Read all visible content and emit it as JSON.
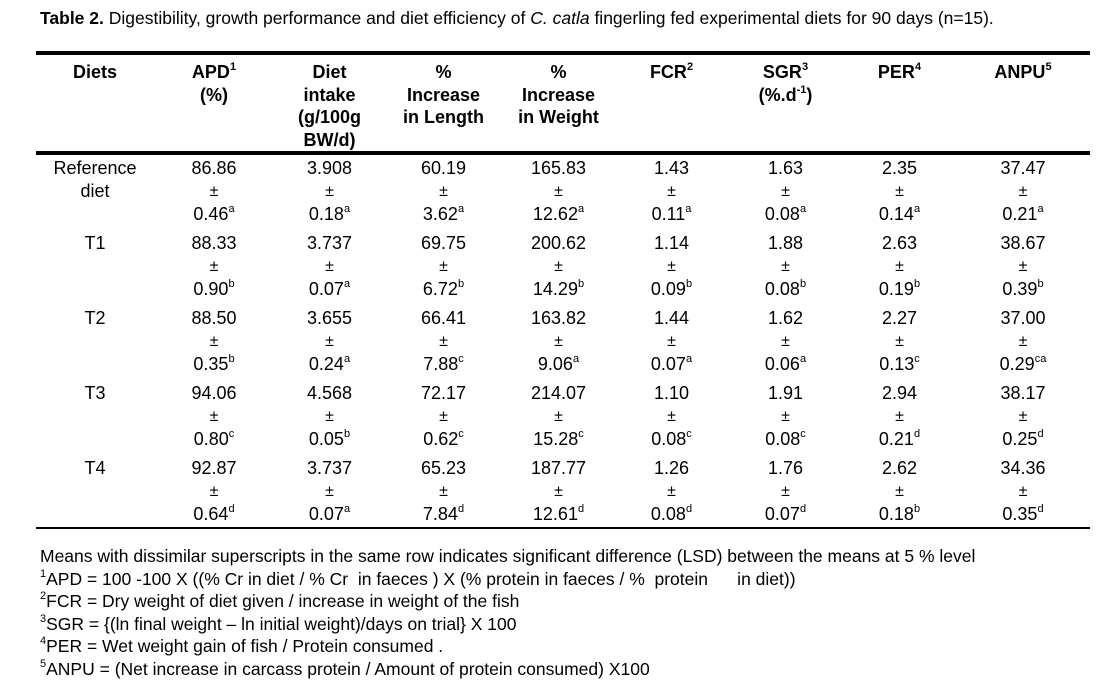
{
  "caption": {
    "label": "Table 2.",
    "text_before": " Digestibility, growth performance and diet efficiency of ",
    "species": "C. catla",
    "text_after": " fingerling fed experimental diets for 90 days (n=15)."
  },
  "headers": [
    {
      "main": "Diets",
      "sup": ""
    },
    {
      "main": "APD",
      "sup": "1",
      "sub": "(%)"
    },
    {
      "main": "Diet intake (g/100g BW/d)",
      "sup": ""
    },
    {
      "main": "% Increase in Length",
      "sup": ""
    },
    {
      "main": "% Increase in Weight",
      "sup": ""
    },
    {
      "main": "FCR",
      "sup": "2"
    },
    {
      "main": "SGR",
      "sup": "3",
      "sub_pre": "(%.d",
      "sub_sup": "-1",
      "sub_post": ")"
    },
    {
      "main": "PER",
      "sup": "4"
    },
    {
      "main": "ANPU",
      "sup": "5"
    }
  ],
  "rows": [
    {
      "diet": "Reference diet",
      "cells": [
        {
          "mean": "86.86",
          "pm": "±",
          "sd": "0.46",
          "sig": "a"
        },
        {
          "mean": "3.908",
          "pm": "±",
          "sd": "0.18",
          "sig": "a"
        },
        {
          "mean": "60.19",
          "pm": "±",
          "sd": "3.62",
          "sig": "a"
        },
        {
          "mean": "165.83",
          "pm": "±",
          "sd": "12.62",
          "sig": "a"
        },
        {
          "mean": "1.43",
          "pm": "±",
          "sd": "0.11",
          "sig": "a"
        },
        {
          "mean": "1.63",
          "pm": "±",
          "sd": "0.08",
          "sig": "a"
        },
        {
          "mean": "2.35",
          "pm": "±",
          "sd": "0.14",
          "sig": "a"
        },
        {
          "mean": "37.47",
          "pm": "±",
          "sd": "0.21",
          "sig": "a"
        }
      ]
    },
    {
      "diet": "T1",
      "cells": [
        {
          "mean": "88.33",
          "pm": "±",
          "sd": "0.90",
          "sig": "b"
        },
        {
          "mean": "3.737",
          "pm": "±",
          "sd": "0.07",
          "sig": "a"
        },
        {
          "mean": "69.75",
          "pm": "±",
          "sd": "6.72",
          "sig": "b"
        },
        {
          "mean": "200.62",
          "pm": "±",
          "sd": "14.29",
          "sig": "b"
        },
        {
          "mean": "1.14",
          "pm": "±",
          "sd": "0.09",
          "sig": "b"
        },
        {
          "mean": "1.88",
          "pm": "±",
          "sd": "0.08",
          "sig": "b"
        },
        {
          "mean": "2.63",
          "pm": "±",
          "sd": "0.19",
          "sig": "b"
        },
        {
          "mean": "38.67",
          "pm": "±",
          "sd": "0.39",
          "sig": "b"
        }
      ]
    },
    {
      "diet": "T2",
      "cells": [
        {
          "mean": "88.50",
          "pm": "±",
          "sd": "0.35",
          "sig": "b"
        },
        {
          "mean": "3.655",
          "pm": "±",
          "sd": "0.24",
          "sig": "a"
        },
        {
          "mean": "66.41",
          "pm": "±",
          "sd": "7.88",
          "sig": "c"
        },
        {
          "mean": "163.82",
          "pm": "±",
          "sd": "9.06",
          "sig": "a"
        },
        {
          "mean": "1.44",
          "pm": "±",
          "sd": "0.07",
          "sig": "a"
        },
        {
          "mean": "1.62",
          "pm": "±",
          "sd": "0.06",
          "sig": "a"
        },
        {
          "mean": "2.27",
          "pm": "±",
          "sd": "0.13",
          "sig": "c"
        },
        {
          "mean": "37.00",
          "pm": "±",
          "sd": "0.29",
          "sig": "ca"
        }
      ]
    },
    {
      "diet": "T3",
      "cells": [
        {
          "mean": "94.06",
          "pm": "±",
          "sd": "0.80",
          "sig": "c"
        },
        {
          "mean": "4.568",
          "pm": "±",
          "sd": "0.05",
          "sig": "b"
        },
        {
          "mean": "72.17",
          "pm": "±",
          "sd": "0.62",
          "sig": "c"
        },
        {
          "mean": "214.07",
          "pm": "±",
          "sd": "15.28",
          "sig": "c"
        },
        {
          "mean": "1.10",
          "pm": "±",
          "sd": "0.08",
          "sig": "c"
        },
        {
          "mean": "1.91",
          "pm": "±",
          "sd": "0.08",
          "sig": "c"
        },
        {
          "mean": "2.94",
          "pm": "±",
          "sd": "0.21",
          "sig": "d"
        },
        {
          "mean": "38.17",
          "pm": "±",
          "sd": "0.25",
          "sig": "d"
        }
      ]
    },
    {
      "diet": "T4",
      "cells": [
        {
          "mean": "92.87",
          "pm": "±",
          "sd": "0.64",
          "sig": "d"
        },
        {
          "mean": "3.737",
          "pm": "±",
          "sd": "0.07",
          "sig": "a"
        },
        {
          "mean": "65.23",
          "pm": "±",
          "sd": "7.84",
          "sig": "d"
        },
        {
          "mean": "187.77",
          "pm": "±",
          "sd": "12.61",
          "sig": "d"
        },
        {
          "mean": "1.26",
          "pm": "±",
          "sd": "0.08",
          "sig": "d"
        },
        {
          "mean": "1.76",
          "pm": "±",
          "sd": "0.07",
          "sig": "d"
        },
        {
          "mean": "2.62",
          "pm": "±",
          "sd": "0.18",
          "sig": "b"
        },
        {
          "mean": "34.36",
          "pm": "±",
          "sd": "0.35",
          "sig": "d"
        }
      ]
    }
  ],
  "notes": {
    "significance": "Means with dissimilar superscripts in the same row indicates significant difference (LSD) between the means at 5 % level",
    "footnotes": [
      {
        "num": "1",
        "text": "APD = 100 -100 X ((% Cr in diet / % Cr  in faeces ) X (% protein in faeces / %  protein      in diet))"
      },
      {
        "num": "2",
        "text": "FCR = Dry weight of diet given / increase in weight of the fish"
      },
      {
        "num": "3",
        "text": "SGR = {(ln final weight – ln initial weight)/days on trial} X 100"
      },
      {
        "num": "4",
        "text": "PER = Wet weight gain of fish / Protein consumed ."
      },
      {
        "num": "5",
        "text": "ANPU = (Net increase in carcass protein / Amount of protein consumed) X100"
      }
    ]
  }
}
